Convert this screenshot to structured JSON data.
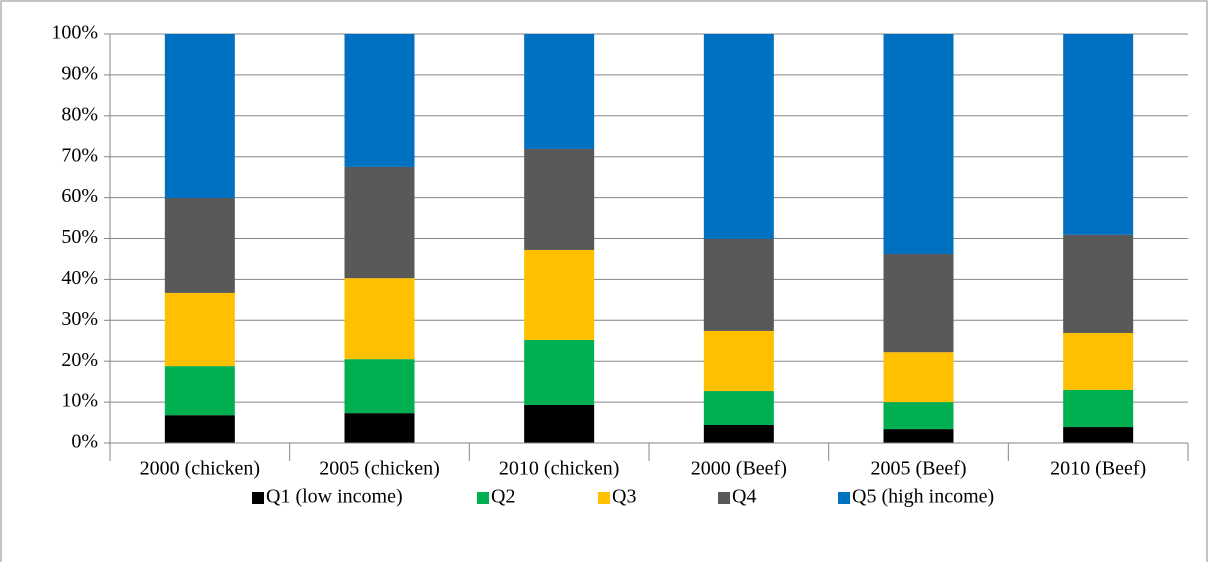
{
  "chart_data": {
    "type": "stacked_bar",
    "categories": [
      "2000 (chicken)",
      "2005 (chicken)",
      "2010 (chicken)",
      "2000 (Beef)",
      "2005 (Beef)",
      "2010 (Beef)"
    ],
    "series": [
      {
        "name": "Q1 (low income)",
        "color": "#000000",
        "values": [
          6.8,
          7.3,
          9.3,
          4.4,
          3.4,
          3.9
        ]
      },
      {
        "name": "Q2",
        "color": "#00b050",
        "values": [
          12.0,
          13.2,
          15.9,
          8.3,
          6.6,
          9.1
        ]
      },
      {
        "name": "Q3",
        "color": "#ffc000",
        "values": [
          17.9,
          19.8,
          22.0,
          14.7,
          12.2,
          13.9
        ]
      },
      {
        "name": "Q4",
        "color": "#595959",
        "values": [
          23.2,
          27.2,
          24.7,
          22.5,
          24.0,
          24.0
        ]
      },
      {
        "name": "Q5 (high income)",
        "color": "#0070c0",
        "values": [
          40.1,
          32.5,
          28.1,
          50.1,
          53.8,
          49.1
        ]
      }
    ],
    "ylim": [
      0,
      100
    ],
    "yticks": [
      {
        "value": 0,
        "label": "0%"
      },
      {
        "value": 10,
        "label": "10%"
      },
      {
        "value": 20,
        "label": "20%"
      },
      {
        "value": 30,
        "label": "30%"
      },
      {
        "value": 40,
        "label": "40%"
      },
      {
        "value": 50,
        "label": "50%"
      },
      {
        "value": 60,
        "label": "60%"
      },
      {
        "value": 70,
        "label": "70%"
      },
      {
        "value": 80,
        "label": "80%"
      },
      {
        "value": 90,
        "label": "90%"
      },
      {
        "value": 100,
        "label": "100%"
      }
    ],
    "grid": true,
    "legend": "bottom"
  }
}
